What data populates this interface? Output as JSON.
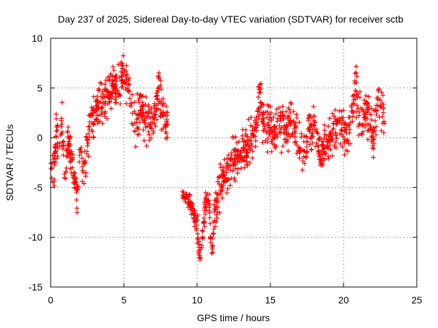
{
  "chart_data": {
    "type": "scatter",
    "title": "Day 237 of 2025, Sidereal Day-to-day VTEC variation (SDTVAR) for receiver sctb",
    "xlabel": "GPS time / hours",
    "ylabel": "SDTVAR / TECUs",
    "xlim": [
      0,
      25
    ],
    "ylim": [
      -15,
      10
    ],
    "xticks": [
      0,
      5,
      10,
      15,
      20,
      25
    ],
    "yticks": [
      -15,
      -10,
      -5,
      0,
      5,
      10
    ],
    "xtick_labels": [
      "0",
      "5",
      "10",
      "15",
      "20",
      "25"
    ],
    "ytick_labels": [
      "-15",
      "-10",
      "-5",
      "0",
      "5",
      "10"
    ],
    "grid": true,
    "marker": "+",
    "series": [
      {
        "name": "sctb",
        "color": "#ff0000",
        "trend": {
          "x": [
            0.0,
            0.2,
            0.4,
            0.6,
            0.8,
            1.0,
            1.2,
            1.5,
            1.8,
            2.0,
            2.3,
            2.6,
            3.0,
            3.4,
            3.8,
            4.2,
            4.6,
            5.0,
            5.4,
            5.8,
            6.2,
            6.6,
            7.0,
            7.4,
            7.8,
            8.0
          ],
          "y": [
            -1.5,
            -3.0,
            0.5,
            -1.0,
            1.5,
            -4.0,
            0.0,
            -3.0,
            -5.5,
            -2.0,
            -2.5,
            0.5,
            2.5,
            3.5,
            4.0,
            5.0,
            4.5,
            6.5,
            4.0,
            2.0,
            3.0,
            1.5,
            2.0,
            4.5,
            1.0,
            2.5
          ],
          "spread": [
            1.5,
            1.5,
            1.5,
            1.5,
            1.5,
            1.2,
            1.5,
            1.5,
            1.2,
            1.5,
            1.5,
            1.5,
            1.5,
            1.5,
            1.5,
            1.5,
            1.5,
            1.5,
            1.5,
            1.5,
            1.5,
            1.5,
            1.5,
            1.5,
            1.5,
            1.5
          ]
        },
        "trend2": {
          "x": [
            9.0,
            9.3,
            9.8,
            10.0,
            10.2,
            10.6,
            10.8,
            11.0,
            11.2,
            11.6,
            12.0,
            12.4,
            12.8,
            13.2,
            13.6,
            14.0,
            14.3,
            14.6,
            14.9,
            15.2,
            15.6,
            16.0,
            16.4,
            16.8,
            17.2,
            17.6,
            18.0,
            18.4,
            18.8,
            19.2,
            19.6,
            20.0,
            20.4,
            20.8,
            21.2,
            21.6,
            22.0,
            22.4,
            22.8
          ],
          "y": [
            -5.8,
            -6.0,
            -7.5,
            -9.0,
            -12.0,
            -6.5,
            -6.0,
            -11.5,
            -8.0,
            -4.5,
            -3.5,
            -2.5,
            -2.0,
            -1.0,
            -0.5,
            0.5,
            4.0,
            1.0,
            1.5,
            0.0,
            1.5,
            0.5,
            2.0,
            0.0,
            -1.5,
            0.5,
            1.0,
            -1.5,
            -0.5,
            0.0,
            1.5,
            0.5,
            0.5,
            5.5,
            1.0,
            3.0,
            0.0,
            4.0,
            2.0
          ],
          "spread": [
            0.3,
            0.5,
            1.0,
            1.5,
            0.5,
            1.0,
            1.0,
            0.5,
            1.5,
            1.5,
            1.5,
            1.5,
            1.5,
            1.5,
            1.5,
            1.5,
            2.0,
            1.5,
            1.5,
            1.5,
            1.5,
            1.5,
            1.5,
            1.5,
            1.5,
            1.5,
            1.5,
            1.5,
            1.5,
            1.5,
            1.5,
            1.5,
            1.5,
            1.5,
            1.5,
            1.5,
            1.5,
            1.5,
            1.5
          ]
        },
        "count": 1400
      }
    ]
  }
}
